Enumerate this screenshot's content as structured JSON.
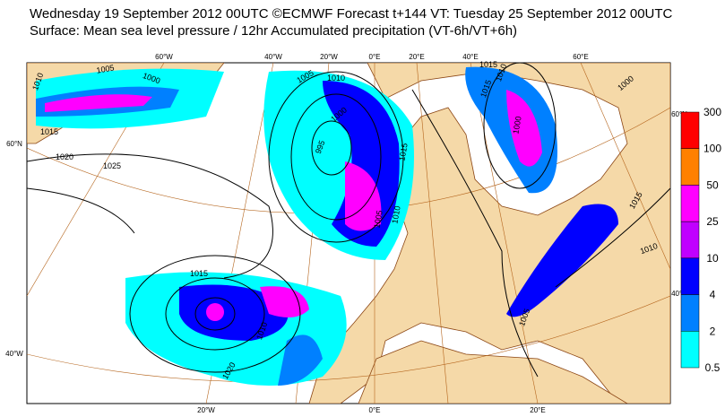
{
  "header": {
    "title": "Wednesday 19 September 2012 00UTC ©ECMWF Forecast t+144 VT: Tuesday 25 September 2012 00UTC",
    "subtitle": "Surface: Mean sea level pressure / 12hr Accumulated precipitation (VT-6h/VT+6h)"
  },
  "graticule": {
    "top": [
      "60°W",
      "40°W",
      "20°W",
      "0°E",
      "20°E",
      "40°E",
      "60°E"
    ],
    "bottom": [
      "20°W",
      "0°E",
      "20°E"
    ],
    "left": [
      "60°N",
      "40°W"
    ],
    "right": [
      "60°N",
      "40°N"
    ]
  },
  "isobars": [
    1010,
    1005,
    1000,
    1015,
    1020,
    1025,
    995,
    1000,
    1005,
    1010,
    1015,
    1005,
    1010,
    1015,
    1000,
    1010,
    1015,
    1010,
    1015,
    1020,
    1015,
    1010,
    1000,
    1005
  ],
  "colorbar": {
    "levels": [
      300,
      100,
      50,
      25,
      10,
      4,
      2,
      0.5
    ],
    "colors": [
      "#ff0000",
      "#ff8000",
      "#ff00ff",
      "#c000ff",
      "#0000ff",
      "#0080ff",
      "#00ffff"
    ]
  }
}
